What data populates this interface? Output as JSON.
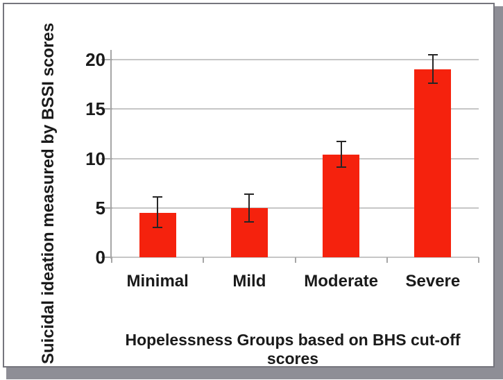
{
  "window": {
    "background": "#ffffff",
    "border_color": "#75757d",
    "shadow_color": "#8e8e96"
  },
  "chart_data": {
    "type": "bar",
    "title": "",
    "categories": [
      "Minimal",
      "Mild",
      "Moderate",
      "Severe"
    ],
    "values": [
      4.5,
      5.0,
      10.4,
      19.0
    ],
    "error_upper": [
      6.1,
      6.4,
      11.7,
      20.5
    ],
    "error_lower": [
      3.0,
      3.6,
      9.1,
      17.6
    ],
    "xlabel": "Hopelessness Groups based on BHS cut-off scores",
    "ylabel": "Suicidal ideation measured by BSSI scores",
    "yticks": [
      0,
      5,
      10,
      15,
      20
    ],
    "ytick_labels": [
      "0",
      "5",
      "10",
      "15",
      "20"
    ],
    "ylim": [
      0,
      21
    ],
    "grid": "horizontal",
    "legend": "none",
    "bar_color": "#f5220d",
    "gridline_color": "#c6c6c6",
    "axis_color": "#a6a6a6",
    "error_bar_color": "#262626",
    "text_color": "#1a1a1a"
  }
}
